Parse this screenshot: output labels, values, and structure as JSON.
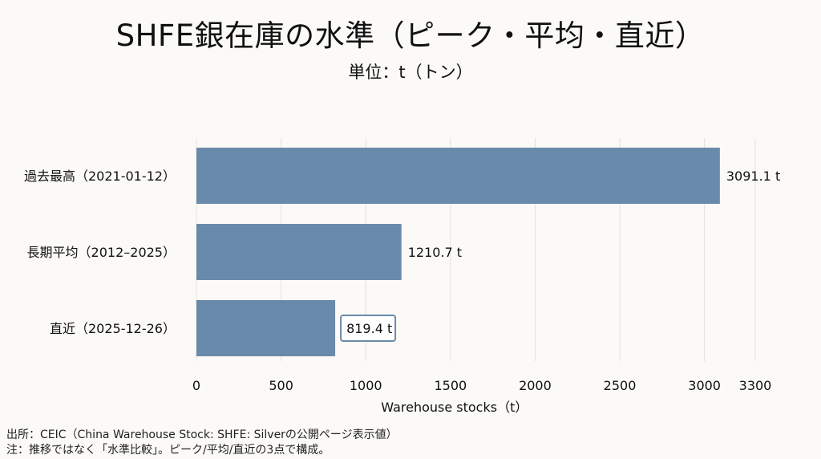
{
  "title": "SHFE銀在庫の水準（ピーク・平均・直近）",
  "subtitle": "単位：t（トン）",
  "chart_data": {
    "type": "bar",
    "orientation": "horizontal",
    "categories": [
      "過去最高（2021-01-12）",
      "長期平均（2012–2025）",
      "直近（2025-12-26）"
    ],
    "values": [
      3091.1,
      1210.7,
      819.4
    ],
    "value_labels": [
      "3091.1 t",
      "1210.7 t",
      "819.4 t"
    ],
    "highlighted_label_index": 2,
    "xlabel": "Warehouse stocks（t）",
    "xticks": [
      0,
      500,
      1000,
      1500,
      2000,
      2500,
      3000,
      3300
    ],
    "xlim": [
      0,
      3300
    ],
    "grid": "vertical",
    "bar_color": "#6a8aab",
    "grid_color": "#e3e1dc",
    "highlight_border_color": "#6a8aab"
  },
  "footnotes": [
    "出所：CEIC（China Warehouse Stock: SHFE: Silverの公開ページ表示値）",
    "注：推移ではなく「水準比較」。ピーク/平均/直近の3点で構成。"
  ]
}
